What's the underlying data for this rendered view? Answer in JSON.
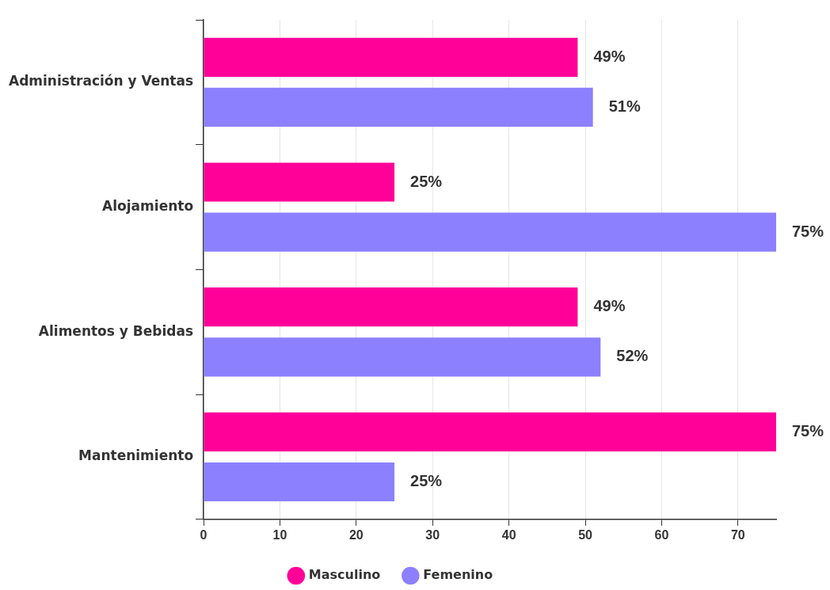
{
  "chart_data": {
    "type": "bar",
    "orientation": "horizontal",
    "categories": [
      "Administración y Ventas",
      "Alojamiento",
      "Alimentos y Bebidas",
      "Mantenimiento"
    ],
    "series": [
      {
        "name": "Masculino",
        "color": "#ff0099",
        "values": [
          49,
          25,
          49,
          75
        ],
        "value_labels": [
          "49%",
          "25%",
          "49%",
          "75%"
        ]
      },
      {
        "name": "Femenino",
        "color": "#8c80ff",
        "values": [
          51,
          75,
          52,
          25
        ],
        "value_labels": [
          "51%",
          "75%",
          "52%",
          "25%"
        ]
      }
    ],
    "xlim": [
      0,
      75
    ],
    "xticks": [
      0,
      10,
      20,
      30,
      40,
      50,
      60,
      70
    ],
    "grid": "x",
    "legend": "bottom",
    "marker": "circle"
  }
}
